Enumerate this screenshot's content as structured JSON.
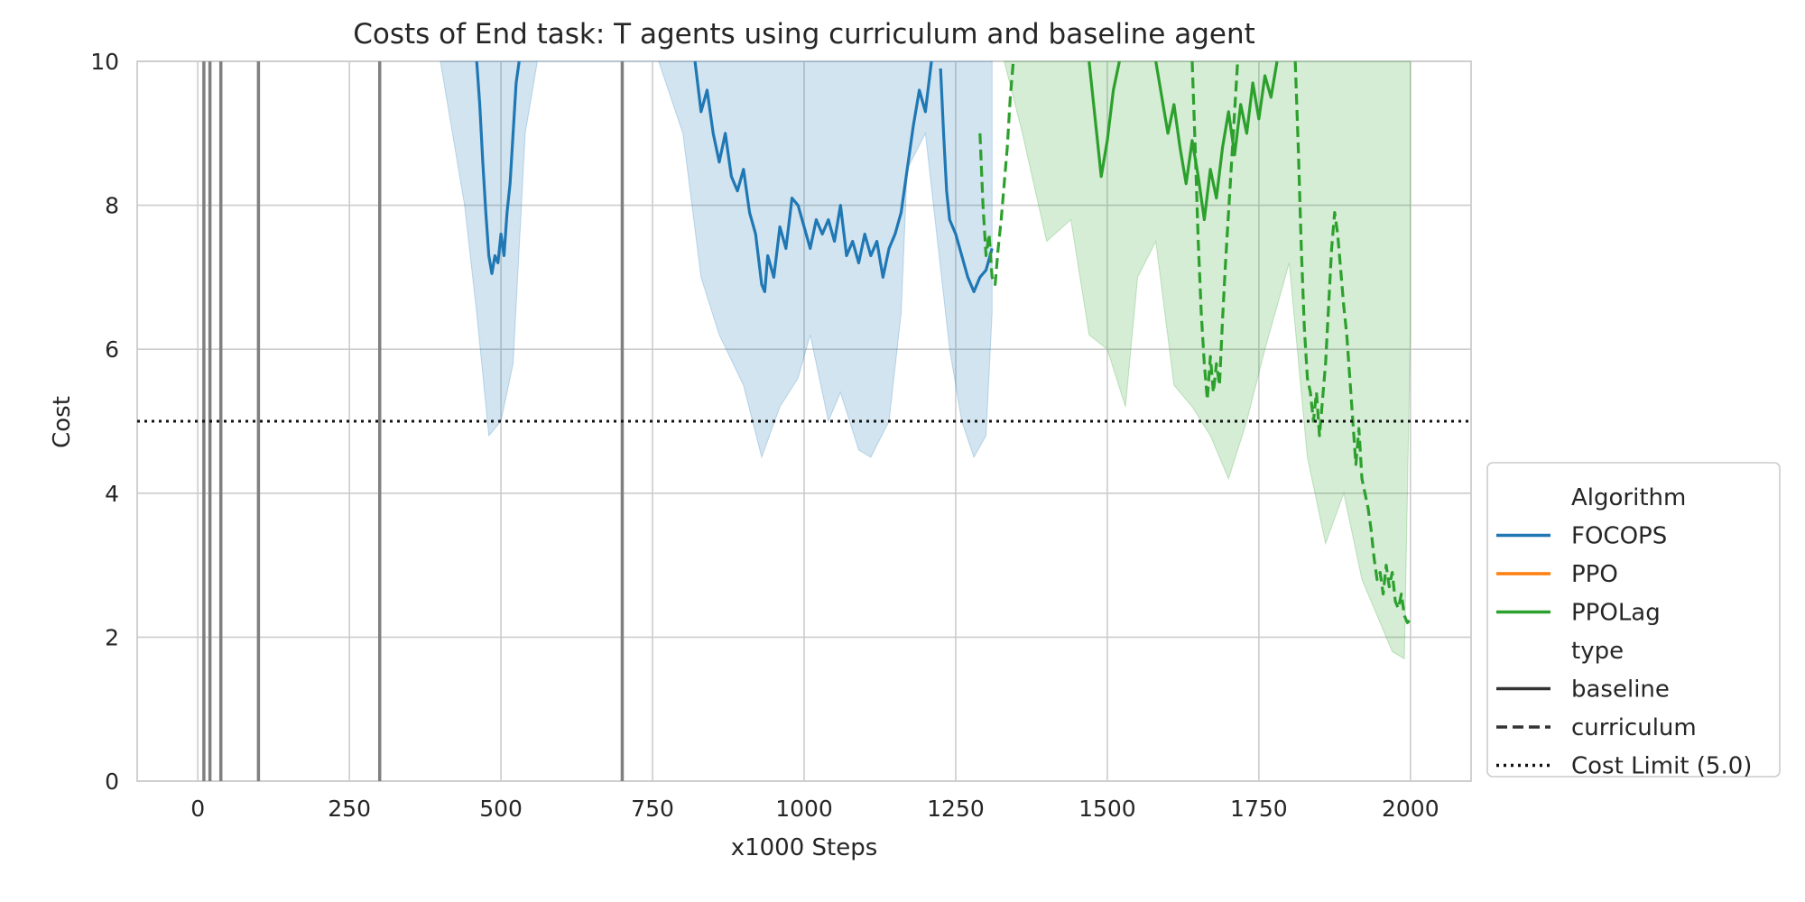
{
  "chart_data": {
    "type": "line",
    "title": "Costs of End task: T agents using curriculum and baseline agent",
    "xlabel": "x1000 Steps",
    "ylabel": "Cost",
    "xlim": [
      -100,
      2100
    ],
    "ylim": [
      0,
      10
    ],
    "x_ticks": [
      0,
      250,
      500,
      750,
      1000,
      1250,
      1500,
      1750,
      2000
    ],
    "y_ticks": [
      0,
      2,
      4,
      6,
      8,
      10
    ],
    "grid": true,
    "legend_position": "lower-right-outside",
    "cost_limit": {
      "label": "Cost Limit (5.0)",
      "value": 5.0
    },
    "legend": {
      "algorithm_header": "Algorithm",
      "type_header": "type",
      "entries": [
        {
          "label": "FOCOPS",
          "color": "#1f77b4",
          "dash": "solid"
        },
        {
          "label": "PPO",
          "color": "#ff7f0e",
          "dash": "solid"
        },
        {
          "label": "PPOLag",
          "color": "#2ca02c",
          "dash": "solid"
        }
      ],
      "type_entries": [
        {
          "label": "baseline",
          "color": "#333333",
          "dash": "solid"
        },
        {
          "label": "curriculum",
          "color": "#333333",
          "dash": "dashed"
        },
        {
          "label": "Cost Limit (5.0)",
          "color": "#111111",
          "dash": "dotted"
        }
      ]
    },
    "baseline_vertical_lines": [
      10,
      20,
      38,
      100,
      300,
      700
    ],
    "series": [
      {
        "name": "FOCOPS",
        "type": "baseline",
        "color": "#1f77b4",
        "dash": "solid",
        "segments": [
          [
            [
              460,
              10
            ],
            [
              465,
              9.4
            ],
            [
              470,
              8.6
            ],
            [
              475,
              7.9
            ],
            [
              480,
              7.3
            ],
            [
              485,
              7.05
            ],
            [
              490,
              7.3
            ],
            [
              495,
              7.2
            ],
            [
              500,
              7.6
            ],
            [
              505,
              7.3
            ],
            [
              510,
              7.9
            ],
            [
              515,
              8.3
            ],
            [
              520,
              9.0
            ],
            [
              525,
              9.7
            ],
            [
              530,
              10
            ]
          ],
          [
            [
              820,
              10
            ],
            [
              830,
              9.3
            ],
            [
              840,
              9.6
            ],
            [
              850,
              9.0
            ],
            [
              860,
              8.6
            ],
            [
              870,
              9.0
            ],
            [
              880,
              8.4
            ],
            [
              890,
              8.2
            ],
            [
              900,
              8.5
            ],
            [
              910,
              7.9
            ],
            [
              920,
              7.6
            ],
            [
              930,
              6.9
            ],
            [
              935,
              6.8
            ],
            [
              940,
              7.3
            ],
            [
              950,
              7.0
            ],
            [
              960,
              7.7
            ],
            [
              970,
              7.4
            ],
            [
              980,
              8.1
            ],
            [
              990,
              8.0
            ],
            [
              1000,
              7.7
            ],
            [
              1010,
              7.4
            ],
            [
              1020,
              7.8
            ],
            [
              1030,
              7.6
            ],
            [
              1040,
              7.8
            ],
            [
              1050,
              7.5
            ],
            [
              1060,
              8.0
            ],
            [
              1070,
              7.3
            ],
            [
              1080,
              7.5
            ],
            [
              1090,
              7.2
            ],
            [
              1100,
              7.6
            ],
            [
              1110,
              7.3
            ],
            [
              1120,
              7.5
            ],
            [
              1130,
              7.0
            ],
            [
              1140,
              7.4
            ],
            [
              1150,
              7.6
            ],
            [
              1160,
              7.9
            ],
            [
              1170,
              8.5
            ],
            [
              1180,
              9.1
            ],
            [
              1190,
              9.6
            ],
            [
              1200,
              9.3
            ],
            [
              1210,
              10
            ]
          ],
          [
            [
              1225,
              9.9
            ],
            [
              1230,
              9.0
            ],
            [
              1235,
              8.2
            ],
            [
              1240,
              7.8
            ],
            [
              1250,
              7.6
            ],
            [
              1260,
              7.3
            ],
            [
              1270,
              7.0
            ],
            [
              1280,
              6.8
            ],
            [
              1290,
              7.0
            ],
            [
              1300,
              7.1
            ],
            [
              1310,
              7.4
            ]
          ]
        ],
        "band": {
          "upper": [
            [
              400,
              10
            ],
            [
              1310,
              10
            ]
          ],
          "lower": [
            [
              400,
              10
            ],
            [
              440,
              8.0
            ],
            [
              460,
              6.5
            ],
            [
              480,
              4.8
            ],
            [
              500,
              5.0
            ],
            [
              520,
              5.8
            ],
            [
              540,
              9.0
            ],
            [
              560,
              10
            ],
            [
              760,
              10
            ],
            [
              800,
              9.0
            ],
            [
              830,
              7.0
            ],
            [
              860,
              6.2
            ],
            [
              900,
              5.5
            ],
            [
              930,
              4.5
            ],
            [
              960,
              5.2
            ],
            [
              990,
              5.6
            ],
            [
              1010,
              6.2
            ],
            [
              1040,
              5.0
            ],
            [
              1060,
              5.4
            ],
            [
              1090,
              4.6
            ],
            [
              1110,
              4.5
            ],
            [
              1140,
              5.0
            ],
            [
              1160,
              6.5
            ],
            [
              1170,
              8.5
            ],
            [
              1200,
              9.0
            ],
            [
              1220,
              7.5
            ],
            [
              1240,
              6.0
            ],
            [
              1260,
              5.0
            ],
            [
              1280,
              4.5
            ],
            [
              1300,
              4.8
            ],
            [
              1310,
              6.5
            ]
          ]
        }
      },
      {
        "name": "PPOLag",
        "type": "baseline",
        "color": "#2ca02c",
        "dash": "solid",
        "segments": [
          [
            [
              1470,
              10
            ],
            [
              1480,
              9.2
            ],
            [
              1490,
              8.4
            ],
            [
              1500,
              8.9
            ],
            [
              1510,
              9.6
            ],
            [
              1520,
              10
            ]
          ],
          [
            [
              1580,
              10
            ],
            [
              1590,
              9.5
            ],
            [
              1600,
              9.0
            ],
            [
              1610,
              9.4
            ],
            [
              1620,
              8.8
            ],
            [
              1630,
              8.3
            ],
            [
              1640,
              8.9
            ],
            [
              1650,
              8.4
            ],
            [
              1660,
              7.8
            ],
            [
              1670,
              8.5
            ],
            [
              1680,
              8.1
            ],
            [
              1690,
              8.8
            ],
            [
              1700,
              9.3
            ],
            [
              1710,
              8.7
            ],
            [
              1720,
              9.4
            ],
            [
              1730,
              9.0
            ],
            [
              1740,
              9.7
            ],
            [
              1750,
              9.2
            ],
            [
              1760,
              9.8
            ],
            [
              1770,
              9.5
            ],
            [
              1780,
              10
            ]
          ]
        ],
        "band": {
          "upper": [
            [
              1330,
              10
            ],
            [
              2000,
              10
            ]
          ],
          "lower": [
            [
              1330,
              10
            ],
            [
              1360,
              9.0
            ],
            [
              1400,
              7.5
            ],
            [
              1440,
              7.8
            ],
            [
              1470,
              6.2
            ],
            [
              1500,
              6.0
            ],
            [
              1530,
              5.2
            ],
            [
              1550,
              7.0
            ],
            [
              1580,
              7.5
            ],
            [
              1610,
              5.5
            ],
            [
              1640,
              5.2
            ],
            [
              1670,
              4.8
            ],
            [
              1700,
              4.2
            ],
            [
              1730,
              5.0
            ],
            [
              1760,
              6.0
            ],
            [
              1800,
              7.2
            ],
            [
              1830,
              4.5
            ],
            [
              1860,
              3.3
            ],
            [
              1890,
              4.0
            ],
            [
              1920,
              2.8
            ],
            [
              1950,
              2.2
            ],
            [
              1970,
              1.8
            ],
            [
              1990,
              1.7
            ],
            [
              2000,
              6.3
            ]
          ]
        }
      },
      {
        "name": "PPOLag",
        "type": "curriculum",
        "color": "#2ca02c",
        "dash": "dashed",
        "segments": [
          [
            [
              1290,
              9.0
            ],
            [
              1295,
              8.0
            ],
            [
              1300,
              7.3
            ],
            [
              1305,
              7.6
            ],
            [
              1310,
              7.0
            ],
            [
              1315,
              6.9
            ],
            [
              1320,
              7.4
            ],
            [
              1325,
              7.8
            ],
            [
              1330,
              8.3
            ],
            [
              1335,
              8.8
            ],
            [
              1340,
              9.5
            ],
            [
              1345,
              10
            ]
          ],
          [
            [
              1640,
              10
            ],
            [
              1645,
              8.8
            ],
            [
              1650,
              7.5
            ],
            [
              1655,
              6.5
            ],
            [
              1660,
              5.8
            ],
            [
              1665,
              5.3
            ],
            [
              1670,
              5.9
            ],
            [
              1675,
              5.4
            ],
            [
              1680,
              5.8
            ],
            [
              1685,
              5.5
            ],
            [
              1690,
              6.4
            ],
            [
              1695,
              7.2
            ],
            [
              1700,
              7.9
            ],
            [
              1705,
              8.6
            ],
            [
              1710,
              9.3
            ],
            [
              1715,
              10
            ]
          ],
          [
            [
              1810,
              10
            ],
            [
              1815,
              8.8
            ],
            [
              1820,
              7.4
            ],
            [
              1825,
              6.3
            ],
            [
              1830,
              5.6
            ],
            [
              1835,
              5.4
            ],
            [
              1840,
              5.0
            ],
            [
              1845,
              5.4
            ],
            [
              1850,
              4.8
            ],
            [
              1855,
              5.3
            ],
            [
              1860,
              5.8
            ],
            [
              1865,
              6.6
            ],
            [
              1870,
              7.4
            ],
            [
              1875,
              7.9
            ],
            [
              1880,
              7.6
            ],
            [
              1885,
              7.1
            ],
            [
              1890,
              6.6
            ],
            [
              1895,
              6.2
            ],
            [
              1900,
              5.6
            ],
            [
              1905,
              5.0
            ],
            [
              1910,
              4.4
            ],
            [
              1915,
              4.9
            ],
            [
              1920,
              4.2
            ],
            [
              1925,
              4.0
            ],
            [
              1930,
              3.8
            ],
            [
              1935,
              3.5
            ],
            [
              1940,
              3.1
            ],
            [
              1945,
              2.8
            ],
            [
              1950,
              2.9
            ],
            [
              1955,
              2.6
            ],
            [
              1960,
              3.0
            ],
            [
              1965,
              2.7
            ],
            [
              1970,
              2.9
            ],
            [
              1975,
              2.5
            ],
            [
              1980,
              2.4
            ],
            [
              1985,
              2.6
            ],
            [
              1990,
              2.3
            ],
            [
              1995,
              2.2
            ],
            [
              2000,
              2.25
            ]
          ]
        ]
      }
    ]
  }
}
